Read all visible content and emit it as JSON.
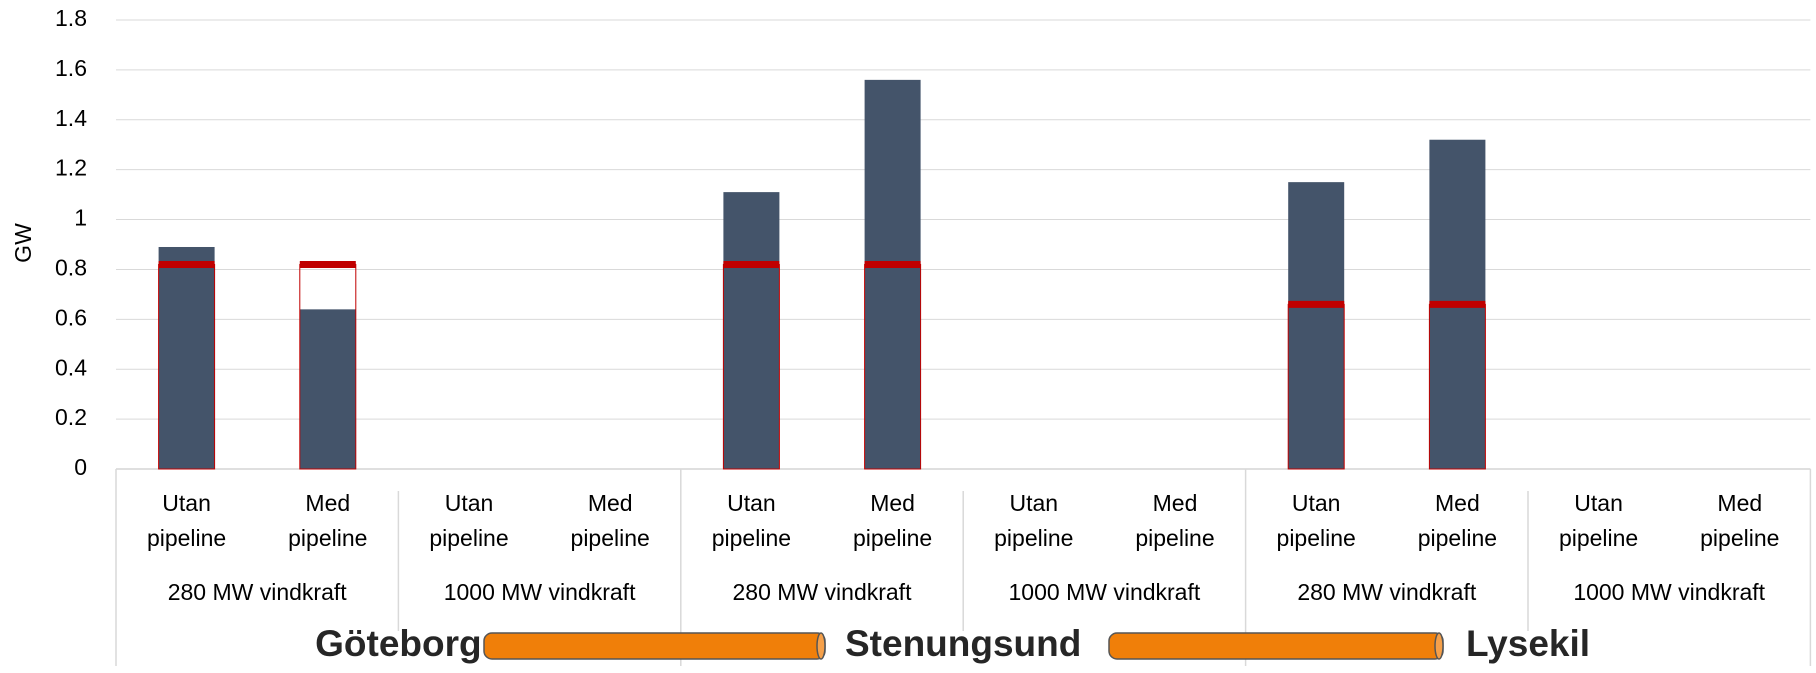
{
  "chart_data": {
    "type": "bar",
    "ylabel": "GW",
    "categories": [
      "Utan pipeline",
      "Med pipeline",
      "Utan pipeline",
      "Med pipeline",
      "Utan pipeline",
      "Med pipeline",
      "Utan pipeline",
      "Med pipeline",
      "Utan pipeline",
      "Med pipeline",
      "Utan pipeline",
      "Med pipeline"
    ],
    "groups": [
      "280 MW vindkraft",
      "1000 MW vindkraft",
      "280 MW vindkraft",
      "1000 MW vindkraft",
      "280 MW vindkraft",
      "1000 MW vindkraft"
    ],
    "locations": [
      "Göteborg",
      "Stenungsund",
      "Lysekil"
    ],
    "series": [
      {
        "color": "#44546a",
        "values": [
          0.89,
          0.64,
          null,
          null,
          1.11,
          1.56,
          null,
          null,
          1.15,
          1.32,
          null,
          null
        ]
      },
      {
        "color": "#c00000",
        "type": "marker",
        "values": [
          0.82,
          0.82,
          null,
          null,
          0.82,
          0.82,
          null,
          null,
          0.66,
          0.66,
          null,
          null
        ]
      }
    ],
    "ylim": [
      0,
      1.8
    ],
    "yticks": [
      0,
      0.2,
      0.4,
      0.6,
      0.8,
      1,
      1.2,
      1.4,
      1.6,
      1.8
    ],
    "grid": true
  }
}
